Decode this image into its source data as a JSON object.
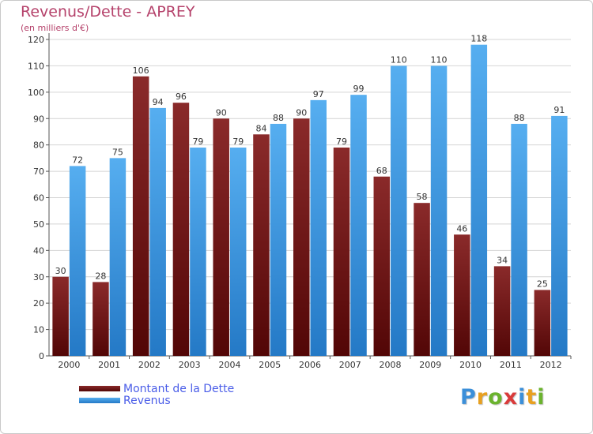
{
  "chart_data": {
    "type": "bar",
    "title": "Revenus/Dette - APREY",
    "subtitle": "(en milliers d'€)",
    "categories": [
      "2000",
      "2001",
      "2002",
      "2003",
      "2004",
      "2005",
      "2006",
      "2007",
      "2008",
      "2009",
      "2010",
      "2011",
      "2012"
    ],
    "series": [
      {
        "name": "Montant de la Dette",
        "values": [
          30,
          28,
          106,
          96,
          90,
          84,
          90,
          79,
          68,
          58,
          46,
          34,
          25
        ],
        "color": "#7a1a1a"
      },
      {
        "name": "Revenus",
        "values": [
          72,
          75,
          94,
          79,
          79,
          88,
          97,
          99,
          110,
          110,
          118,
          88,
          91
        ],
        "color": "#3d9be0"
      }
    ],
    "ylim": [
      0,
      120
    ],
    "yticks": [
      0,
      10,
      20,
      30,
      40,
      50,
      60,
      70,
      80,
      90,
      100,
      110,
      120
    ],
    "grid": true,
    "legend": "bottom-left"
  },
  "logo": {
    "letters": [
      "P",
      "r",
      "o",
      "x",
      "i",
      "t",
      "i"
    ],
    "colors": [
      "#3b8fd9",
      "#e8a020",
      "#6bb32e",
      "#d93b3b",
      "#3b8fd9",
      "#e8a020",
      "#6bb32e"
    ]
  }
}
